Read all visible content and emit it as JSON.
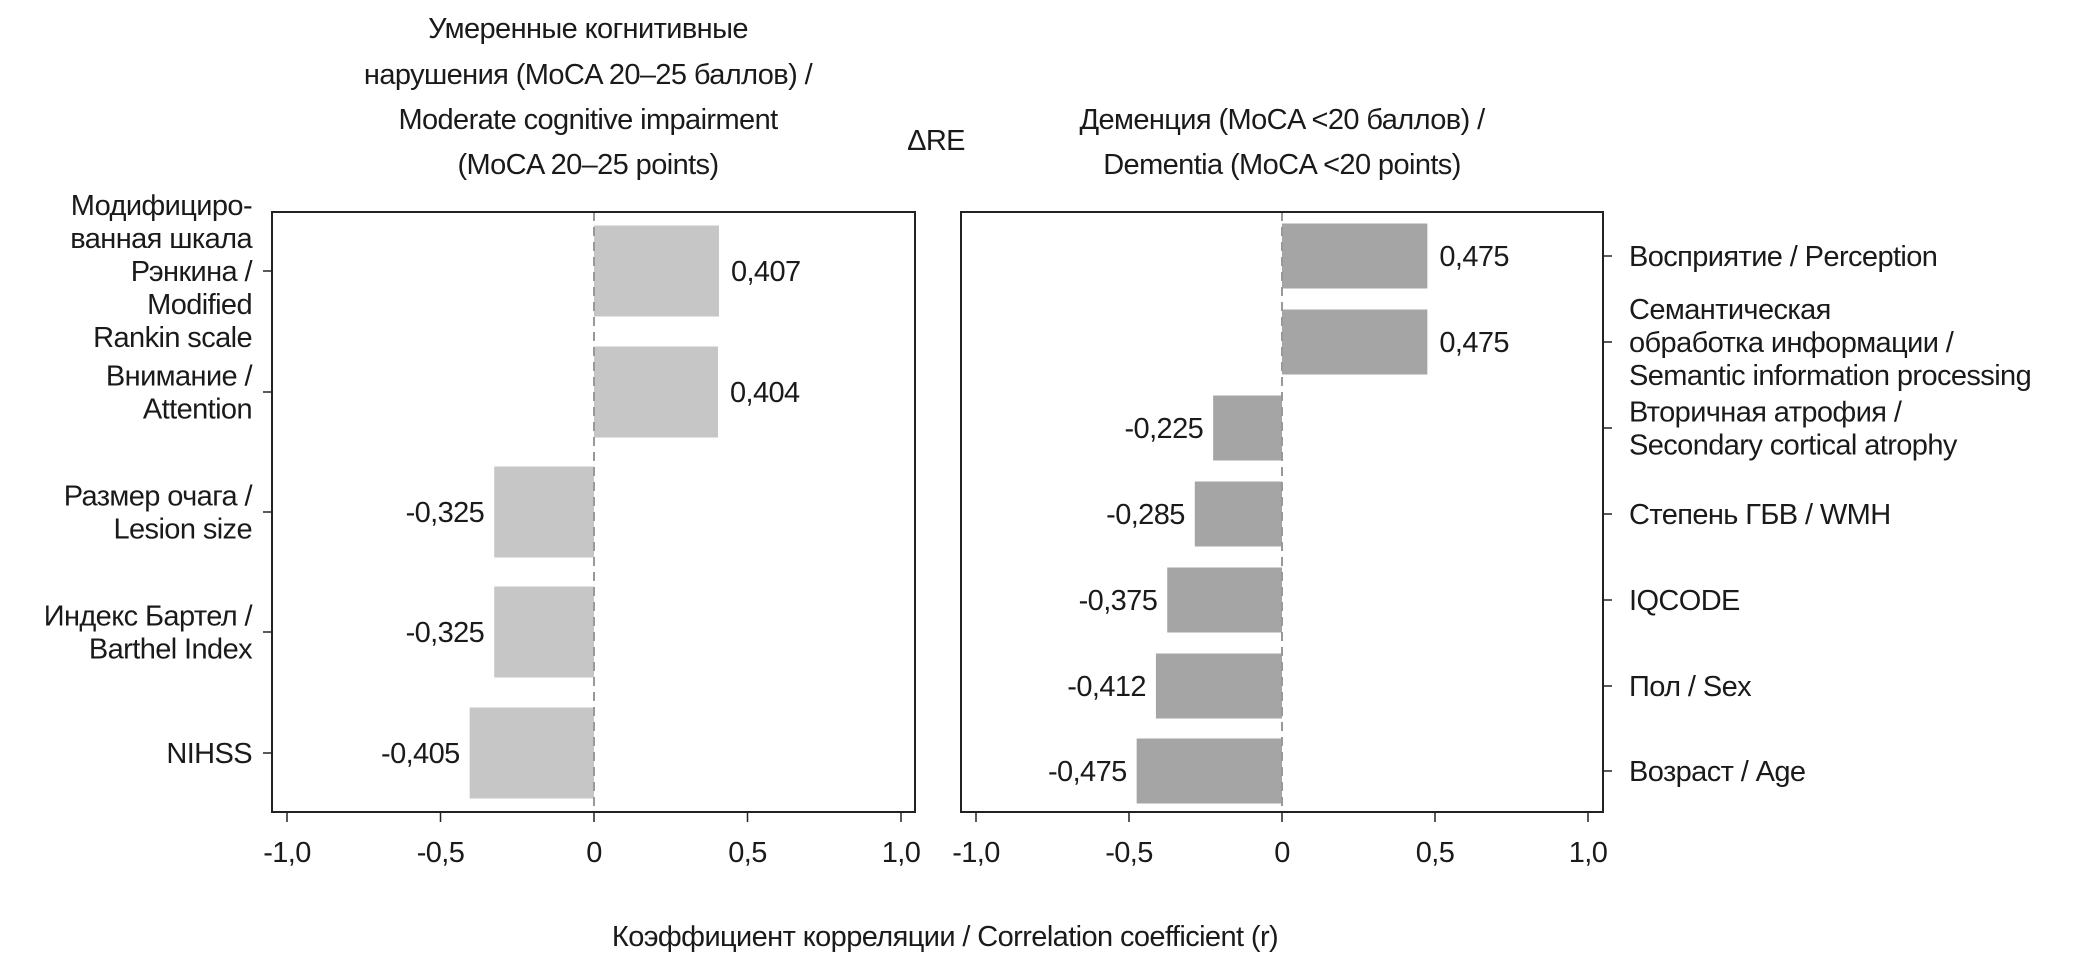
{
  "chart_data": [
    {
      "type": "bar",
      "orientation": "horizontal",
      "title": [
        "Умеренные когнитивные",
        "нарушения (MoCA 20–25 баллов) /",
        "Moderate cognitive impairment",
        "(MoCA 20–25 points)"
      ],
      "categories": [
        [
          "Модифициро-",
          "ванная шкала",
          "Рэнкина /",
          "Modified",
          "Rankin scale"
        ],
        [
          "Внимание /",
          "Attention"
        ],
        [
          "Размер очага /",
          "Lesion size"
        ],
        [
          "Индекс Бартел /",
          "Barthel Index"
        ],
        [
          "NIHSS"
        ]
      ],
      "values": [
        0.407,
        0.404,
        -0.325,
        -0.325,
        -0.405
      ],
      "value_labels": [
        "0,407",
        "0,404",
        "-0,325",
        "-0,325",
        "-0,405"
      ],
      "xlim": [
        -1.0,
        1.0
      ],
      "xticks": [
        -1.0,
        -0.5,
        0,
        0.5,
        1.0
      ],
      "xtick_labels": [
        "-1,0",
        "-0,5",
        "0",
        "0,5",
        "1,0"
      ],
      "label_side": "left",
      "color": "#c6c6c6"
    },
    {
      "type": "bar",
      "orientation": "horizontal",
      "title": [
        "Деменция (MoCA <20 баллов) /",
        "Dementia (MoCA <20 points)"
      ],
      "categories": [
        [
          "Восприятие / Perception"
        ],
        [
          "Семантическая",
          "обработка информации /",
          "Semantic information processing"
        ],
        [
          "Вторичная атрофия /",
          "Secondary cortical atrophy"
        ],
        [
          "Степень ГБВ / WMH"
        ],
        [
          "IQCODE"
        ],
        [
          "Пол / Sex"
        ],
        [
          "Возраст / Age"
        ]
      ],
      "values": [
        0.475,
        0.475,
        -0.225,
        -0.285,
        -0.375,
        -0.412,
        -0.475
      ],
      "value_labels": [
        "0,475",
        "0,475",
        "-0,225",
        "-0,285",
        "-0,375",
        "-0,412",
        "-0,475"
      ],
      "xlim": [
        -1.0,
        1.0
      ],
      "xticks": [
        -1.0,
        -0.5,
        0,
        0.5,
        1.0
      ],
      "xtick_labels": [
        "-1,0",
        "-0,5",
        "0",
        "0,5",
        "1,0"
      ],
      "label_side": "right",
      "color": "#a5a5a5"
    }
  ],
  "center_label": "ΔRE",
  "xlabel": "Коэффициент корреляции / Correlation coefficient (r)"
}
